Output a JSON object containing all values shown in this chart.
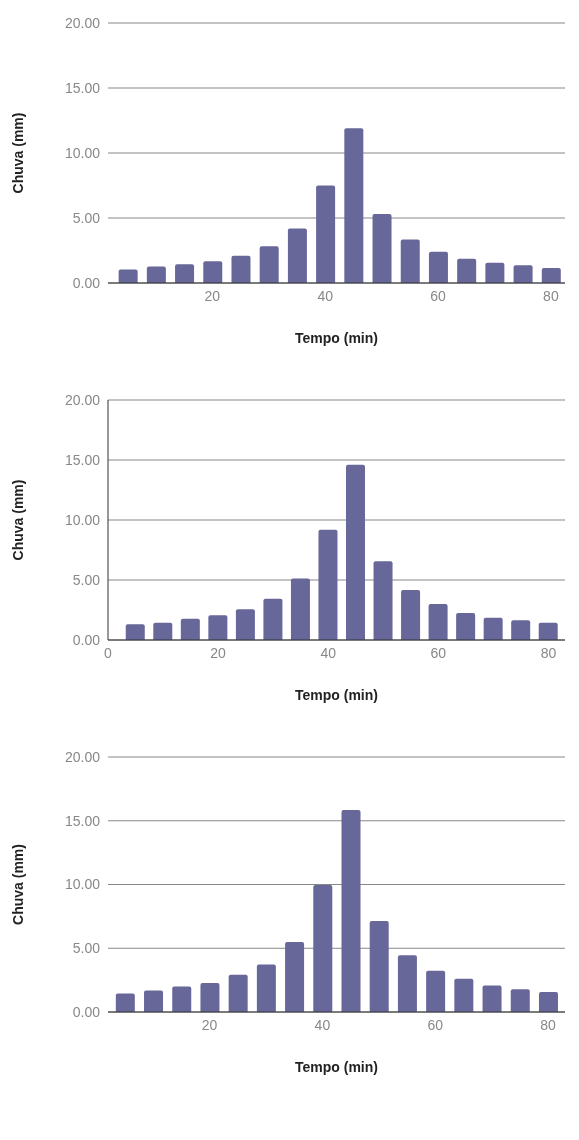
{
  "chart_data": [
    {
      "type": "bar",
      "xlabel": "Tempo (min)",
      "ylabel": "Chuva (mm)",
      "x": [
        5,
        10,
        15,
        20,
        25,
        30,
        35,
        40,
        45,
        50,
        55,
        60,
        65,
        70,
        75,
        80
      ],
      "values": [
        1.03,
        1.26,
        1.45,
        1.68,
        2.1,
        2.82,
        4.19,
        7.5,
        11.9,
        5.3,
        3.35,
        2.4,
        1.87,
        1.56,
        1.37,
        1.15
      ],
      "color": "#67679a",
      "xlim": [
        1.5,
        82.5
      ],
      "xticks": [
        20,
        40,
        60,
        80
      ],
      "ylim": [
        0,
        20
      ],
      "yticks": [
        {
          "value": 0,
          "label": "0.00"
        },
        {
          "value": 5,
          "label": "5.00"
        },
        {
          "value": 10,
          "label": "10.00"
        },
        {
          "value": 15,
          "label": "15.00"
        },
        {
          "value": 20,
          "label": "20.00"
        }
      ],
      "grid": "y"
    },
    {
      "type": "bar",
      "xlabel": "Tempo (min)",
      "ylabel": "Chuva (mm)",
      "x": [
        5,
        10,
        15,
        20,
        25,
        30,
        35,
        40,
        45,
        50,
        55,
        60,
        65,
        70,
        75,
        80
      ],
      "values": [
        1.32,
        1.44,
        1.77,
        2.07,
        2.57,
        3.44,
        5.12,
        9.19,
        14.6,
        6.56,
        4.16,
        2.99,
        2.25,
        1.86,
        1.65,
        1.44
      ],
      "color": "#67679a",
      "xlim": [
        0,
        83
      ],
      "xticks": [
        0,
        20,
        40,
        60,
        80
      ],
      "ylim": [
        0,
        20
      ],
      "yticks": [
        {
          "value": 0,
          "label": "0.00"
        },
        {
          "value": 5,
          "label": "5.00"
        },
        {
          "value": 10,
          "label": "10.00"
        },
        {
          "value": 15,
          "label": "15.00"
        },
        {
          "value": 20,
          "label": "20.00"
        }
      ],
      "grid": "y"
    },
    {
      "type": "bar",
      "xlabel": "Tempo (min)",
      "ylabel": "Chuva (mm)",
      "x": [
        5,
        10,
        15,
        20,
        25,
        30,
        35,
        40,
        45,
        50,
        55,
        60,
        65,
        70,
        75,
        80
      ],
      "values": [
        1.45,
        1.68,
        2.0,
        2.28,
        2.92,
        3.73,
        5.49,
        9.97,
        15.84,
        7.14,
        4.45,
        3.24,
        2.6,
        2.08,
        1.79,
        1.56
      ],
      "color": "#67679a",
      "xlim": [
        2,
        83
      ],
      "xticks": [
        20,
        40,
        60,
        80
      ],
      "ylim": [
        0,
        20
      ],
      "yticks": [
        {
          "value": 0,
          "label": "0.00"
        },
        {
          "value": 5,
          "label": "5.00"
        },
        {
          "value": 10,
          "label": "10.00"
        },
        {
          "value": 15,
          "label": "15.00"
        },
        {
          "value": 20,
          "label": "20.00"
        }
      ],
      "grid": "y"
    }
  ]
}
